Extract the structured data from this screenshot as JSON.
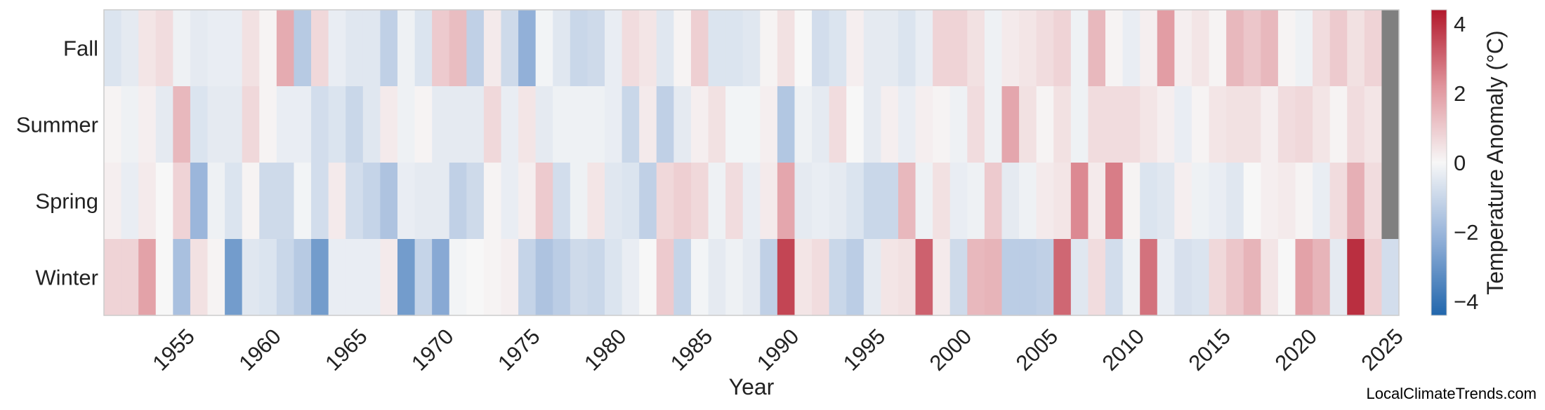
{
  "chart_data": {
    "type": "heatmap",
    "title": "",
    "xlabel": "Year",
    "x_tick_labels": [
      "1955",
      "1960",
      "1965",
      "1970",
      "1975",
      "1980",
      "1985",
      "1990",
      "1995",
      "2000",
      "2005",
      "2010",
      "2015",
      "2020",
      "2025"
    ],
    "x_range": [
      1951,
      2025
    ],
    "rows": [
      "Fall",
      "Summer",
      "Spring",
      "Winter"
    ],
    "colorbar": {
      "label": "Temperature Anomaly (°C)",
      "ticks": [
        "−4",
        "−2",
        "0",
        "2",
        "4"
      ],
      "range": [
        -4.4,
        4.4
      ],
      "colormap": "blue-white-red",
      "missing_color": "#808080"
    },
    "values": {
      "Fall": [
        -0.6,
        -0.4,
        0.4,
        0.6,
        -0.2,
        -0.4,
        -0.3,
        -0.3,
        0.5,
        0.1,
        1.7,
        -1.4,
        0.7,
        -0.3,
        -0.5,
        -0.5,
        -1.2,
        -0.2,
        -0.6,
        1.0,
        1.3,
        -1.2,
        0.3,
        -0.9,
        -2.2,
        -0.1,
        -0.5,
        -1.0,
        -0.9,
        -0.3,
        0.6,
        0.4,
        -0.5,
        0.1,
        0.9,
        -0.6,
        -0.6,
        -0.5,
        0.1,
        0.5,
        0.0,
        -0.8,
        -0.6,
        0.2,
        -0.4,
        -0.4,
        -0.6,
        -0.3,
        0.8,
        0.8,
        0.5,
        -0.2,
        0.3,
        0.4,
        0.6,
        0.8,
        -0.2,
        1.4,
        0.1,
        -0.3,
        0.2,
        2.0,
        0.2,
        0.4,
        0.1,
        1.4,
        1.1,
        1.4,
        0.1,
        -0.2,
        0.6,
        1.0,
        0.5,
        0.8,
        null
      ],
      "Summer": [
        0.1,
        -0.2,
        0.2,
        -0.4,
        1.4,
        -0.6,
        -0.4,
        -0.4,
        0.7,
        0.1,
        -0.3,
        -0.3,
        -0.8,
        -0.6,
        -1.0,
        -0.5,
        0.3,
        -0.2,
        0.1,
        -0.4,
        -0.4,
        -0.4,
        0.7,
        -0.3,
        0.4,
        -0.4,
        -0.2,
        -0.2,
        -0.2,
        -0.3,
        -1.0,
        0.3,
        -1.2,
        -0.4,
        0.2,
        0.5,
        -0.1,
        -0.1,
        0.2,
        -1.5,
        -0.2,
        -0.4,
        0.6,
        0.0,
        -0.4,
        0.2,
        -0.3,
        0.2,
        0.1,
        -0.2,
        0.6,
        -0.2,
        1.8,
        0.5,
        0.1,
        0.5,
        -0.2,
        0.6,
        0.6,
        0.6,
        0.4,
        0.2,
        -0.3,
        0.1,
        0.4,
        0.5,
        0.5,
        0.2,
        0.6,
        0.7,
        0.4,
        0.1,
        0.6,
        0.4,
        null
      ],
      "Spring": [
        0.2,
        -0.3,
        0.3,
        0.0,
        0.8,
        -2.0,
        -0.2,
        -0.6,
        0.1,
        -0.9,
        -0.9,
        -0.1,
        -0.8,
        0.3,
        -0.8,
        -1.1,
        -1.6,
        -0.3,
        -0.4,
        -0.4,
        -1.2,
        -0.9,
        0.1,
        -0.3,
        0.2,
        1.0,
        -0.8,
        -0.2,
        0.4,
        -0.5,
        -0.6,
        -1.2,
        0.7,
        0.9,
        0.7,
        -0.2,
        0.6,
        -0.3,
        0.3,
        1.8,
        -0.4,
        -0.3,
        -0.4,
        -0.6,
        -1.0,
        -1.0,
        1.4,
        -0.2,
        0.5,
        -0.3,
        -0.2,
        1.0,
        -0.4,
        -0.2,
        0.3,
        0.4,
        2.4,
        0.3,
        2.6,
        0.1,
        -0.6,
        -0.5,
        0.2,
        -0.2,
        -0.3,
        -0.5,
        0.0,
        0.2,
        0.3,
        0.1,
        -0.3,
        0.6,
        1.6,
        0.6,
        null
      ],
      "Winter": [
        0.8,
        0.8,
        1.9,
        0.0,
        -1.7,
        0.5,
        0.1,
        -2.8,
        -0.5,
        -0.6,
        -1.0,
        -1.4,
        -2.8,
        -0.3,
        -0.3,
        -0.3,
        0.3,
        -2.8,
        -1.1,
        -2.4,
        -0.1,
        0.0,
        0.1,
        0.2,
        -1.1,
        -1.6,
        -1.3,
        -0.9,
        -1.0,
        -0.6,
        -0.3,
        0.0,
        1.0,
        -1.1,
        -0.1,
        -0.4,
        -0.2,
        -0.4,
        -1.2,
        3.6,
        0.4,
        0.6,
        -1.0,
        -1.3,
        -0.4,
        0.4,
        0.5,
        3.1,
        0.3,
        -0.9,
        1.4,
        1.5,
        -1.3,
        -1.3,
        -1.2,
        3.0,
        -0.5,
        0.6,
        -0.8,
        -0.2,
        2.8,
        -0.3,
        -0.7,
        -0.6,
        0.7,
        1.1,
        1.5,
        0.4,
        0.0,
        1.9,
        1.5,
        -0.4,
        4.0,
        0.9,
        -0.8
      ]
    }
  },
  "watermark": "LocalClimateTrends.com"
}
